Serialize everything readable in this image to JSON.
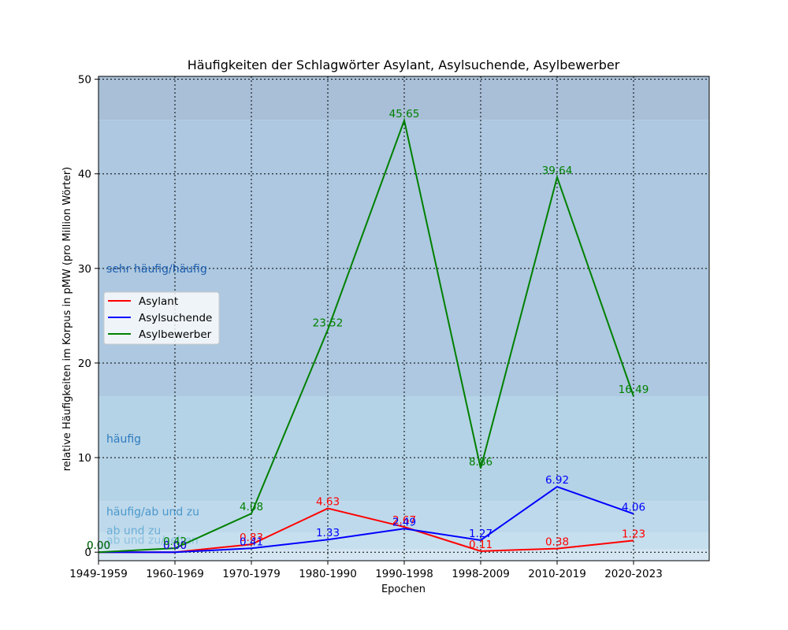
{
  "chart_data": {
    "type": "line",
    "title": "Häufigkeiten der Schlagwörter Asylant, Asylsuchende, Asylbewerber",
    "xlabel": "Epochen",
    "ylabel": "relative Häufigkeiten im Korpus in pMW (pro Million Wörter)",
    "categories": [
      "1949-1959",
      "1960-1969",
      "1970-1979",
      "1980-1990",
      "1990-1998",
      "1998-2009",
      "2010-2019",
      "2020-2023"
    ],
    "ylim": [
      -0.9,
      50.3
    ],
    "yticks": [
      0,
      10,
      20,
      30,
      40,
      50
    ],
    "grid": true,
    "legend_position": "center-left",
    "series": [
      {
        "name": "Asylant",
        "color": "#ff0000",
        "values": [
          0.0,
          0.0,
          0.83,
          4.63,
          2.67,
          0.11,
          0.38,
          1.23
        ],
        "labels": [
          "0.00",
          "0.00",
          "0.83",
          "4.63",
          "2.67",
          "0.11",
          "0.38",
          "1.23"
        ]
      },
      {
        "name": "Asylsuchende",
        "color": "#0000ff",
        "values": [
          0.0,
          0.0,
          0.41,
          1.33,
          2.49,
          1.27,
          6.92,
          4.06
        ],
        "labels": [
          "0.00",
          "0.00",
          "0.41",
          "1.33",
          "2.49",
          "1.27",
          "6.92",
          "4.06"
        ]
      },
      {
        "name": "Asylbewerber",
        "color": "#008000",
        "values": [
          0.0,
          0.42,
          4.08,
          23.52,
          45.65,
          8.86,
          39.64,
          16.49
        ],
        "labels": [
          "0.00",
          "0.42",
          "4.08",
          "23.52",
          "45.65",
          "8.86",
          "39.64",
          "16.49"
        ]
      }
    ],
    "bands": [
      {
        "from": -0.9,
        "to": 0.3,
        "color": "#d5e6f2",
        "label": ""
      },
      {
        "from": 0.3,
        "to": 2.1,
        "color": "#c6dfee",
        "label": "ab und zu/selten"
      },
      {
        "from": 2.1,
        "to": 5.4,
        "color": "#bed9eb",
        "label": "ab und zu"
      },
      {
        "from": 5.4,
        "to": 16.5,
        "color": "#b5d3e6",
        "label": "häufig/ab und zu"
      },
      {
        "from": 16.5,
        "to": 45.7,
        "color": "#adc8e0",
        "label": "häufig"
      },
      {
        "from": 45.7,
        "to": 50.3,
        "color": "#a8bfd7",
        "label": "sehr häufig/häufig"
      }
    ],
    "band_label_colors": {
      "sehr häufig/häufig": "#1f5fb0",
      "häufig": "#2e7bbf",
      "häufig/ab und zu": "#4a97cc",
      "ab und zu": "#6aaed6",
      "ab und zu/selten": "#8cc1e0"
    }
  }
}
